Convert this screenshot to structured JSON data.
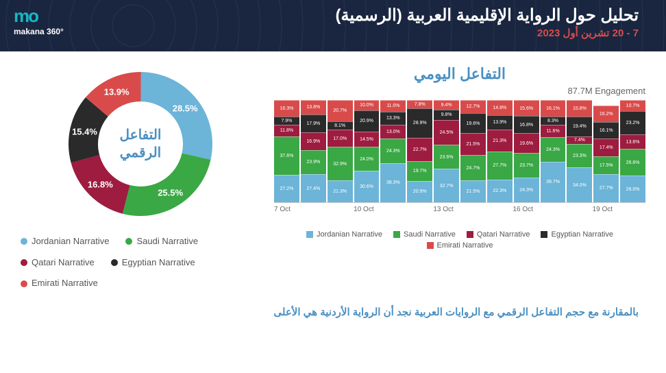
{
  "header": {
    "title": "تحليل حول الرواية الإقليمية العربية (الرسمية)",
    "date": "7 - 20 تشرين أول 2023",
    "logo_top": "mo",
    "logo_bot": "makana 360°"
  },
  "colors": {
    "jordanian": "#6cb4d8",
    "saudi": "#3aa845",
    "qatari": "#9e1c3f",
    "egyptian": "#2a2a2a",
    "emirati": "#d94b4b",
    "header_bg": "#1a2640",
    "accent_blue": "#4a90c2"
  },
  "donut": {
    "center_label": "التفاعل الرقمي",
    "slices": [
      {
        "key": "jordanian",
        "label": "28.5%",
        "value": 28.5
      },
      {
        "key": "saudi",
        "label": "25.5%",
        "value": 25.5
      },
      {
        "key": "qatari",
        "label": "16.8%",
        "value": 16.8
      },
      {
        "key": "egyptian",
        "label": "15.4%",
        "value": 15.4
      },
      {
        "key": "emirati",
        "label": "13.9%",
        "value": 13.9
      }
    ],
    "legend": [
      {
        "key": "jordanian",
        "label": "Jordanian Narrative"
      },
      {
        "key": "saudi",
        "label": "Saudi Narrative"
      },
      {
        "key": "qatari",
        "label": "Qatari Narrative"
      },
      {
        "key": "egyptian",
        "label": "Egyptian Narrative"
      },
      {
        "key": "emirati",
        "label": "Emirati Narrative"
      }
    ]
  },
  "stackedBar": {
    "title": "التفاعل اليومي",
    "engagement": "87.7M Engagement",
    "order": [
      "jordanian",
      "saudi",
      "qatari",
      "egyptian",
      "emirati"
    ],
    "x_labels": [
      "7 Oct",
      "",
      "",
      "10 Oct",
      "",
      "",
      "13 Oct",
      "",
      "",
      "16 Oct",
      "",
      "",
      "19 Oct",
      ""
    ],
    "days": [
      {
        "jordanian": 27.2,
        "saudi": 37.6,
        "qatari": 11.8,
        "egyptian": 7.9,
        "emirati": 16.3
      },
      {
        "jordanian": 27.4,
        "saudi": 23.9,
        "qatari": 16.9,
        "egyptian": 17.9,
        "emirati": 13.8
      },
      {
        "jordanian": 21.3,
        "saudi": 32.9,
        "qatari": 17.0,
        "egyptian": 8.1,
        "emirati": 20.7
      },
      {
        "jordanian": 30.6,
        "saudi": 24.0,
        "qatari": 14.5,
        "egyptian": 20.9,
        "emirati": 10.0
      },
      {
        "jordanian": 38.3,
        "saudi": 24.3,
        "qatari": 13.0,
        "egyptian": 13.3,
        "emirati": 11.0
      },
      {
        "jordanian": 20.9,
        "saudi": 19.7,
        "qatari": 22.7,
        "egyptian": 28.9,
        "emirati": 7.8
      },
      {
        "jordanian": 32.7,
        "saudi": 23.6,
        "qatari": 24.5,
        "egyptian": 9.8,
        "emirati": 9.4
      },
      {
        "jordanian": 21.5,
        "saudi": 24.7,
        "qatari": 21.5,
        "egyptian": 19.6,
        "emirati": 12.7
      },
      {
        "jordanian": 22.3,
        "saudi": 27.7,
        "qatari": 21.3,
        "egyptian": 13.9,
        "emirati": 14.8
      },
      {
        "jordanian": 24.3,
        "saudi": 23.7,
        "qatari": 19.6,
        "egyptian": 16.8,
        "emirati": 15.6
      },
      {
        "jordanian": 39.7,
        "saudi": 24.3,
        "qatari": 11.6,
        "egyptian": 8.3,
        "emirati": 16.1
      },
      {
        "jordanian": 34.0,
        "saudi": 23.3,
        "qatari": 7.4,
        "egyptian": 19.4,
        "emirati": 15.8
      },
      {
        "jordanian": 27.7,
        "saudi": 17.5,
        "qatari": 17.4,
        "egyptian": 16.1,
        "emirati": 16.2
      },
      {
        "jordanian": 26.0,
        "saudi": 26.6,
        "qatari": 13.6,
        "egyptian": 23.2,
        "emirati": 10.7
      }
    ],
    "legend": [
      {
        "key": "jordanian",
        "label": "Jordanian Narrative"
      },
      {
        "key": "saudi",
        "label": "Saudi Narrative"
      },
      {
        "key": "qatari",
        "label": "Qatari Narrative"
      },
      {
        "key": "egyptian",
        "label": "Egyptian Narrative"
      },
      {
        "key": "emirati",
        "label": "Emirati Narrative"
      }
    ]
  },
  "footer": "بالمقارنة مع حجم التفاعل الرقمي مع الروايات العربية نجد أن الرواية الأردنية هي الأعلى"
}
